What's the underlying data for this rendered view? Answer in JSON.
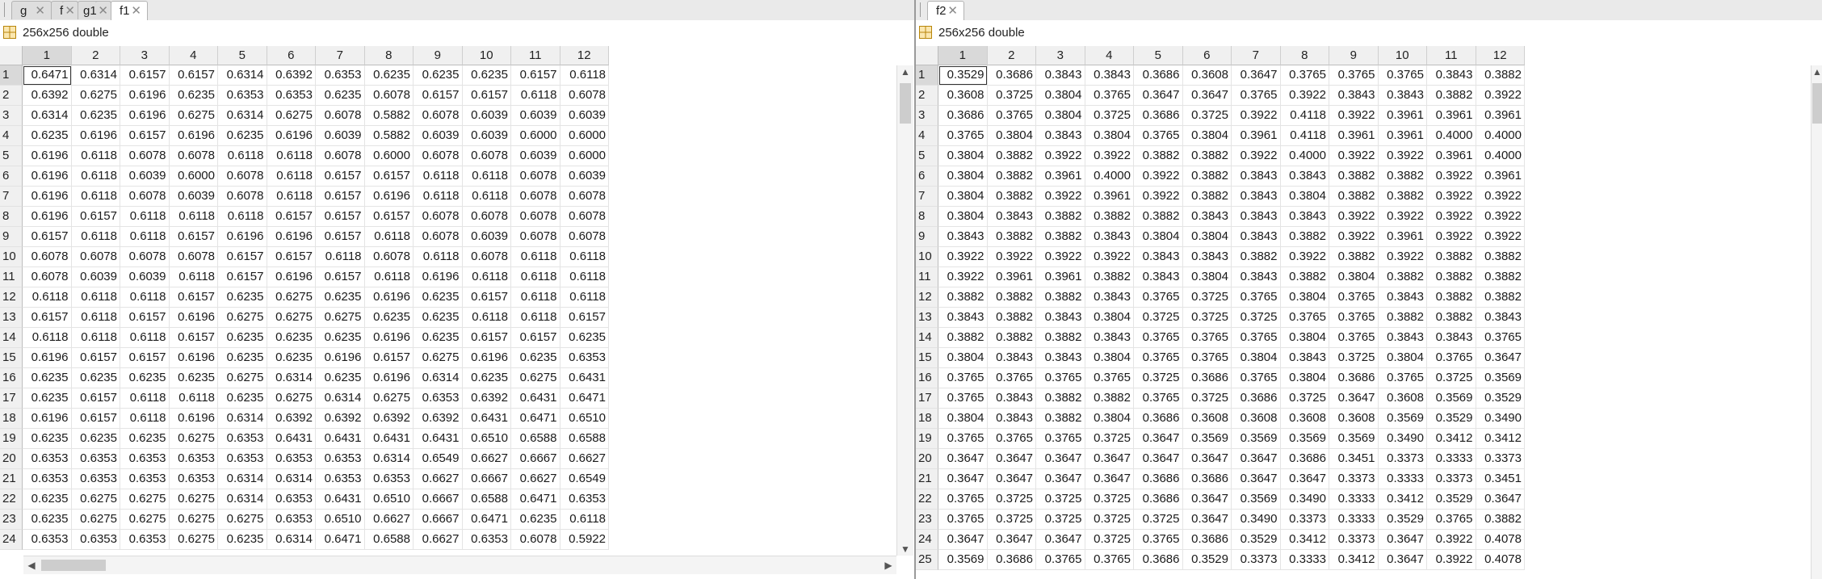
{
  "left": {
    "tabs": [
      {
        "label": "g",
        "active": false
      },
      {
        "label": "f",
        "active": false
      },
      {
        "label": "g1",
        "active": false
      },
      {
        "label": "f1",
        "active": true
      }
    ],
    "info": "256x256 double",
    "columns": [
      "1",
      "2",
      "3",
      "4",
      "5",
      "6",
      "7",
      "8",
      "9",
      "10",
      "11",
      "12"
    ],
    "rows": [
      {
        "label": "1",
        "cells": [
          "0.6471",
          "0.6314",
          "0.6157",
          "0.6157",
          "0.6314",
          "0.6392",
          "0.6353",
          "0.6235",
          "0.6235",
          "0.6235",
          "0.6157",
          "0.6118"
        ]
      },
      {
        "label": "2",
        "cells": [
          "0.6392",
          "0.6275",
          "0.6196",
          "0.6235",
          "0.6353",
          "0.6353",
          "0.6235",
          "0.6078",
          "0.6157",
          "0.6157",
          "0.6118",
          "0.6078"
        ]
      },
      {
        "label": "3",
        "cells": [
          "0.6314",
          "0.6235",
          "0.6196",
          "0.6275",
          "0.6314",
          "0.6275",
          "0.6078",
          "0.5882",
          "0.6078",
          "0.6039",
          "0.6039",
          "0.6039"
        ]
      },
      {
        "label": "4",
        "cells": [
          "0.6235",
          "0.6196",
          "0.6157",
          "0.6196",
          "0.6235",
          "0.6196",
          "0.6039",
          "0.5882",
          "0.6039",
          "0.6039",
          "0.6000",
          "0.6000"
        ]
      },
      {
        "label": "5",
        "cells": [
          "0.6196",
          "0.6118",
          "0.6078",
          "0.6078",
          "0.6118",
          "0.6118",
          "0.6078",
          "0.6000",
          "0.6078",
          "0.6078",
          "0.6039",
          "0.6000"
        ]
      },
      {
        "label": "6",
        "cells": [
          "0.6196",
          "0.6118",
          "0.6039",
          "0.6000",
          "0.6078",
          "0.6118",
          "0.6157",
          "0.6157",
          "0.6118",
          "0.6118",
          "0.6078",
          "0.6039"
        ]
      },
      {
        "label": "7",
        "cells": [
          "0.6196",
          "0.6118",
          "0.6078",
          "0.6039",
          "0.6078",
          "0.6118",
          "0.6157",
          "0.6196",
          "0.6118",
          "0.6118",
          "0.6078",
          "0.6078"
        ]
      },
      {
        "label": "8",
        "cells": [
          "0.6196",
          "0.6157",
          "0.6118",
          "0.6118",
          "0.6118",
          "0.6157",
          "0.6157",
          "0.6157",
          "0.6078",
          "0.6078",
          "0.6078",
          "0.6078"
        ]
      },
      {
        "label": "9",
        "cells": [
          "0.6157",
          "0.6118",
          "0.6118",
          "0.6157",
          "0.6196",
          "0.6196",
          "0.6157",
          "0.6118",
          "0.6078",
          "0.6039",
          "0.6078",
          "0.6078"
        ]
      },
      {
        "label": "10",
        "cells": [
          "0.6078",
          "0.6078",
          "0.6078",
          "0.6078",
          "0.6157",
          "0.6157",
          "0.6118",
          "0.6078",
          "0.6118",
          "0.6078",
          "0.6118",
          "0.6118"
        ]
      },
      {
        "label": "11",
        "cells": [
          "0.6078",
          "0.6039",
          "0.6039",
          "0.6118",
          "0.6157",
          "0.6196",
          "0.6157",
          "0.6118",
          "0.6196",
          "0.6118",
          "0.6118",
          "0.6118"
        ]
      },
      {
        "label": "12",
        "cells": [
          "0.6118",
          "0.6118",
          "0.6118",
          "0.6157",
          "0.6235",
          "0.6275",
          "0.6235",
          "0.6196",
          "0.6235",
          "0.6157",
          "0.6118",
          "0.6118"
        ]
      },
      {
        "label": "13",
        "cells": [
          "0.6157",
          "0.6118",
          "0.6157",
          "0.6196",
          "0.6275",
          "0.6275",
          "0.6275",
          "0.6235",
          "0.6235",
          "0.6118",
          "0.6118",
          "0.6157"
        ]
      },
      {
        "label": "14",
        "cells": [
          "0.6118",
          "0.6118",
          "0.6118",
          "0.6157",
          "0.6235",
          "0.6235",
          "0.6235",
          "0.6196",
          "0.6235",
          "0.6157",
          "0.6157",
          "0.6235"
        ]
      },
      {
        "label": "15",
        "cells": [
          "0.6196",
          "0.6157",
          "0.6157",
          "0.6196",
          "0.6235",
          "0.6235",
          "0.6196",
          "0.6157",
          "0.6275",
          "0.6196",
          "0.6235",
          "0.6353"
        ]
      },
      {
        "label": "16",
        "cells": [
          "0.6235",
          "0.6235",
          "0.6235",
          "0.6235",
          "0.6275",
          "0.6314",
          "0.6235",
          "0.6196",
          "0.6314",
          "0.6235",
          "0.6275",
          "0.6431"
        ]
      },
      {
        "label": "17",
        "cells": [
          "0.6235",
          "0.6157",
          "0.6118",
          "0.6118",
          "0.6235",
          "0.6275",
          "0.6314",
          "0.6275",
          "0.6353",
          "0.6392",
          "0.6431",
          "0.6471"
        ]
      },
      {
        "label": "18",
        "cells": [
          "0.6196",
          "0.6157",
          "0.6118",
          "0.6196",
          "0.6314",
          "0.6392",
          "0.6392",
          "0.6392",
          "0.6392",
          "0.6431",
          "0.6471",
          "0.6510"
        ]
      },
      {
        "label": "19",
        "cells": [
          "0.6235",
          "0.6235",
          "0.6235",
          "0.6275",
          "0.6353",
          "0.6431",
          "0.6431",
          "0.6431",
          "0.6431",
          "0.6510",
          "0.6588",
          "0.6588"
        ]
      },
      {
        "label": "20",
        "cells": [
          "0.6353",
          "0.6353",
          "0.6353",
          "0.6353",
          "0.6353",
          "0.6353",
          "0.6353",
          "0.6314",
          "0.6549",
          "0.6627",
          "0.6667",
          "0.6627"
        ]
      },
      {
        "label": "21",
        "cells": [
          "0.6353",
          "0.6353",
          "0.6353",
          "0.6353",
          "0.6314",
          "0.6314",
          "0.6353",
          "0.6353",
          "0.6627",
          "0.6667",
          "0.6627",
          "0.6549"
        ]
      },
      {
        "label": "22",
        "cells": [
          "0.6235",
          "0.6275",
          "0.6275",
          "0.6275",
          "0.6314",
          "0.6353",
          "0.6431",
          "0.6510",
          "0.6667",
          "0.6588",
          "0.6471",
          "0.6353"
        ]
      },
      {
        "label": "23",
        "cells": [
          "0.6235",
          "0.6275",
          "0.6275",
          "0.6275",
          "0.6275",
          "0.6353",
          "0.6510",
          "0.6627",
          "0.6667",
          "0.6471",
          "0.6235",
          "0.6118"
        ]
      },
      {
        "label": "24",
        "cells": [
          "0.6353",
          "0.6353",
          "0.6353",
          "0.6275",
          "0.6235",
          "0.6314",
          "0.6471",
          "0.6588",
          "0.6627",
          "0.6353",
          "0.6078",
          "0.5922"
        ]
      }
    ]
  },
  "right": {
    "tabs": [
      {
        "label": "f2",
        "active": true
      }
    ],
    "info": "256x256 double",
    "columns": [
      "1",
      "2",
      "3",
      "4",
      "5",
      "6",
      "7",
      "8",
      "9",
      "10",
      "11",
      "12"
    ],
    "rows": [
      {
        "label": "1",
        "cells": [
          "0.3529",
          "0.3686",
          "0.3843",
          "0.3843",
          "0.3686",
          "0.3608",
          "0.3647",
          "0.3765",
          "0.3765",
          "0.3765",
          "0.3843",
          "0.3882"
        ]
      },
      {
        "label": "2",
        "cells": [
          "0.3608",
          "0.3725",
          "0.3804",
          "0.3765",
          "0.3647",
          "0.3647",
          "0.3765",
          "0.3922",
          "0.3843",
          "0.3843",
          "0.3882",
          "0.3922"
        ]
      },
      {
        "label": "3",
        "cells": [
          "0.3686",
          "0.3765",
          "0.3804",
          "0.3725",
          "0.3686",
          "0.3725",
          "0.3922",
          "0.4118",
          "0.3922",
          "0.3961",
          "0.3961",
          "0.3961"
        ]
      },
      {
        "label": "4",
        "cells": [
          "0.3765",
          "0.3804",
          "0.3843",
          "0.3804",
          "0.3765",
          "0.3804",
          "0.3961",
          "0.4118",
          "0.3961",
          "0.3961",
          "0.4000",
          "0.4000"
        ]
      },
      {
        "label": "5",
        "cells": [
          "0.3804",
          "0.3882",
          "0.3922",
          "0.3922",
          "0.3882",
          "0.3882",
          "0.3922",
          "0.4000",
          "0.3922",
          "0.3922",
          "0.3961",
          "0.4000"
        ]
      },
      {
        "label": "6",
        "cells": [
          "0.3804",
          "0.3882",
          "0.3961",
          "0.4000",
          "0.3922",
          "0.3882",
          "0.3843",
          "0.3843",
          "0.3882",
          "0.3882",
          "0.3922",
          "0.3961"
        ]
      },
      {
        "label": "7",
        "cells": [
          "0.3804",
          "0.3882",
          "0.3922",
          "0.3961",
          "0.3922",
          "0.3882",
          "0.3843",
          "0.3804",
          "0.3882",
          "0.3882",
          "0.3922",
          "0.3922"
        ]
      },
      {
        "label": "8",
        "cells": [
          "0.3804",
          "0.3843",
          "0.3882",
          "0.3882",
          "0.3882",
          "0.3843",
          "0.3843",
          "0.3843",
          "0.3922",
          "0.3922",
          "0.3922",
          "0.3922"
        ]
      },
      {
        "label": "9",
        "cells": [
          "0.3843",
          "0.3882",
          "0.3882",
          "0.3843",
          "0.3804",
          "0.3804",
          "0.3843",
          "0.3882",
          "0.3922",
          "0.3961",
          "0.3922",
          "0.3922"
        ]
      },
      {
        "label": "10",
        "cells": [
          "0.3922",
          "0.3922",
          "0.3922",
          "0.3922",
          "0.3843",
          "0.3843",
          "0.3882",
          "0.3922",
          "0.3882",
          "0.3922",
          "0.3882",
          "0.3882"
        ]
      },
      {
        "label": "11",
        "cells": [
          "0.3922",
          "0.3961",
          "0.3961",
          "0.3882",
          "0.3843",
          "0.3804",
          "0.3843",
          "0.3882",
          "0.3804",
          "0.3882",
          "0.3882",
          "0.3882"
        ]
      },
      {
        "label": "12",
        "cells": [
          "0.3882",
          "0.3882",
          "0.3882",
          "0.3843",
          "0.3765",
          "0.3725",
          "0.3765",
          "0.3804",
          "0.3765",
          "0.3843",
          "0.3882",
          "0.3882"
        ]
      },
      {
        "label": "13",
        "cells": [
          "0.3843",
          "0.3882",
          "0.3843",
          "0.3804",
          "0.3725",
          "0.3725",
          "0.3725",
          "0.3765",
          "0.3765",
          "0.3882",
          "0.3882",
          "0.3843"
        ]
      },
      {
        "label": "14",
        "cells": [
          "0.3882",
          "0.3882",
          "0.3882",
          "0.3843",
          "0.3765",
          "0.3765",
          "0.3765",
          "0.3804",
          "0.3765",
          "0.3843",
          "0.3843",
          "0.3765"
        ]
      },
      {
        "label": "15",
        "cells": [
          "0.3804",
          "0.3843",
          "0.3843",
          "0.3804",
          "0.3765",
          "0.3765",
          "0.3804",
          "0.3843",
          "0.3725",
          "0.3804",
          "0.3765",
          "0.3647"
        ]
      },
      {
        "label": "16",
        "cells": [
          "0.3765",
          "0.3765",
          "0.3765",
          "0.3765",
          "0.3725",
          "0.3686",
          "0.3765",
          "0.3804",
          "0.3686",
          "0.3765",
          "0.3725",
          "0.3569"
        ]
      },
      {
        "label": "17",
        "cells": [
          "0.3765",
          "0.3843",
          "0.3882",
          "0.3882",
          "0.3765",
          "0.3725",
          "0.3686",
          "0.3725",
          "0.3647",
          "0.3608",
          "0.3569",
          "0.3529"
        ]
      },
      {
        "label": "18",
        "cells": [
          "0.3804",
          "0.3843",
          "0.3882",
          "0.3804",
          "0.3686",
          "0.3608",
          "0.3608",
          "0.3608",
          "0.3608",
          "0.3569",
          "0.3529",
          "0.3490"
        ]
      },
      {
        "label": "19",
        "cells": [
          "0.3765",
          "0.3765",
          "0.3765",
          "0.3725",
          "0.3647",
          "0.3569",
          "0.3569",
          "0.3569",
          "0.3569",
          "0.3490",
          "0.3412",
          "0.3412"
        ]
      },
      {
        "label": "20",
        "cells": [
          "0.3647",
          "0.3647",
          "0.3647",
          "0.3647",
          "0.3647",
          "0.3647",
          "0.3647",
          "0.3686",
          "0.3451",
          "0.3373",
          "0.3333",
          "0.3373"
        ]
      },
      {
        "label": "21",
        "cells": [
          "0.3647",
          "0.3647",
          "0.3647",
          "0.3647",
          "0.3686",
          "0.3686",
          "0.3647",
          "0.3647",
          "0.3373",
          "0.3333",
          "0.3373",
          "0.3451"
        ]
      },
      {
        "label": "22",
        "cells": [
          "0.3765",
          "0.3725",
          "0.3725",
          "0.3725",
          "0.3686",
          "0.3647",
          "0.3569",
          "0.3490",
          "0.3333",
          "0.3412",
          "0.3529",
          "0.3647"
        ]
      },
      {
        "label": "23",
        "cells": [
          "0.3765",
          "0.3725",
          "0.3725",
          "0.3725",
          "0.3725",
          "0.3647",
          "0.3490",
          "0.3373",
          "0.3333",
          "0.3529",
          "0.3765",
          "0.3882"
        ]
      },
      {
        "label": "24",
        "cells": [
          "0.3647",
          "0.3647",
          "0.3647",
          "0.3725",
          "0.3765",
          "0.3686",
          "0.3529",
          "0.3412",
          "0.3373",
          "0.3647",
          "0.3922",
          "0.4078"
        ]
      },
      {
        "label": "25",
        "cells": [
          "0.3569",
          "0.3686",
          "0.3765",
          "0.3765",
          "0.3686",
          "0.3529",
          "0.3373",
          "0.3333",
          "0.3412",
          "0.3647",
          "0.3922",
          "0.4078"
        ]
      }
    ]
  }
}
